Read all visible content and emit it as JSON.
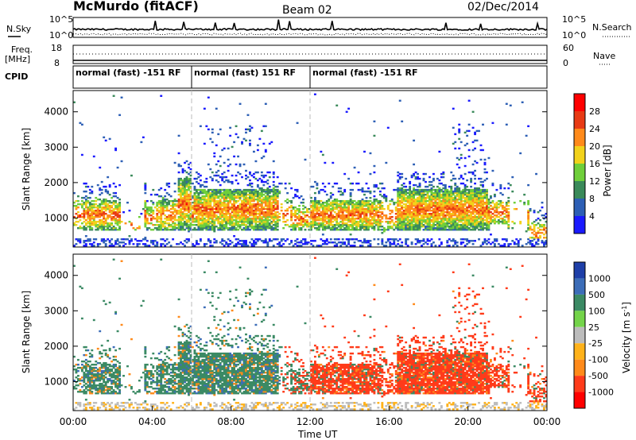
{
  "header": {
    "station": "McMurdo (fitACF)",
    "beam": "Beam 02",
    "date": "02/Dec/2014"
  },
  "top_panels": {
    "nsky_label": "N.Sky",
    "nsky_ticks": [
      "10^5",
      "10^0"
    ],
    "nsearch_label": "N.Search",
    "nsearch_ticks": [
      "10^5",
      "10^0"
    ],
    "freq_label_1": "Freq.",
    "freq_label_2": "[MHz]",
    "freq_ticks": [
      "18",
      "8"
    ],
    "nave_label": "Nave",
    "nave_ticks": [
      "60",
      "0"
    ],
    "cpid_label": "CPID",
    "cpid_segments": [
      {
        "label": "normal (fast) -151 RF",
        "start_hour": 0,
        "end_hour": 6
      },
      {
        "label": "normal (fast) 151 RF",
        "start_hour": 6,
        "end_hour": 12
      },
      {
        "label": "normal (fast) -151 RF",
        "start_hour": 12,
        "end_hour": 24
      }
    ]
  },
  "chart_data": [
    {
      "type": "heatmap",
      "panel": "power",
      "ylabel": "Slant Range [km]",
      "y_ticks": [
        "1000",
        "2000",
        "3000",
        "4000"
      ],
      "ylim": [
        180,
        4600
      ],
      "colorbar_label": "Power [dB]",
      "colorbar_ticks": [
        "4",
        "8",
        "12",
        "16",
        "20",
        "24",
        "28"
      ],
      "colorbar_colors": [
        "#1a1aff",
        "#2d5fb5",
        "#3a8a5a",
        "#6fcf3a",
        "#f2d21b",
        "#ff8a1a",
        "#e83a14",
        "#ff0000"
      ],
      "scale": "linear",
      "range": [
        0,
        30
      ],
      "main_band_km": [
        700,
        1800
      ],
      "peak_value_db": 28
    },
    {
      "type": "heatmap",
      "panel": "velocity",
      "ylabel": "Slant Range [km]",
      "y_ticks": [
        "1000",
        "2000",
        "3000",
        "4000"
      ],
      "ylim": [
        180,
        4600
      ],
      "xlabel": "Time UT",
      "x_ticks": [
        "00:00",
        "04:00",
        "08:00",
        "12:00",
        "16:00",
        "20:00",
        "00:00"
      ],
      "xlim_hours": [
        0,
        24
      ],
      "colorbar_label": "Velocity [m s^-1]",
      "colorbar_ticks": [
        "1000",
        "500",
        "100",
        "25",
        "-25",
        "-100",
        "-500",
        "-1000"
      ],
      "colorbar_colors": [
        "#1e3fa8",
        "#3c6db8",
        "#3b8a64",
        "#74d44a",
        "#bcbcbc",
        "#ffb21a",
        "#ff8a1a",
        "#ff3b1a",
        "#ff0000"
      ],
      "scale": "symmetric log",
      "main_band_km": [
        700,
        1800
      ],
      "dominant_flow": "toward radar before ~10 UT, away from radar after ~12 UT"
    }
  ]
}
